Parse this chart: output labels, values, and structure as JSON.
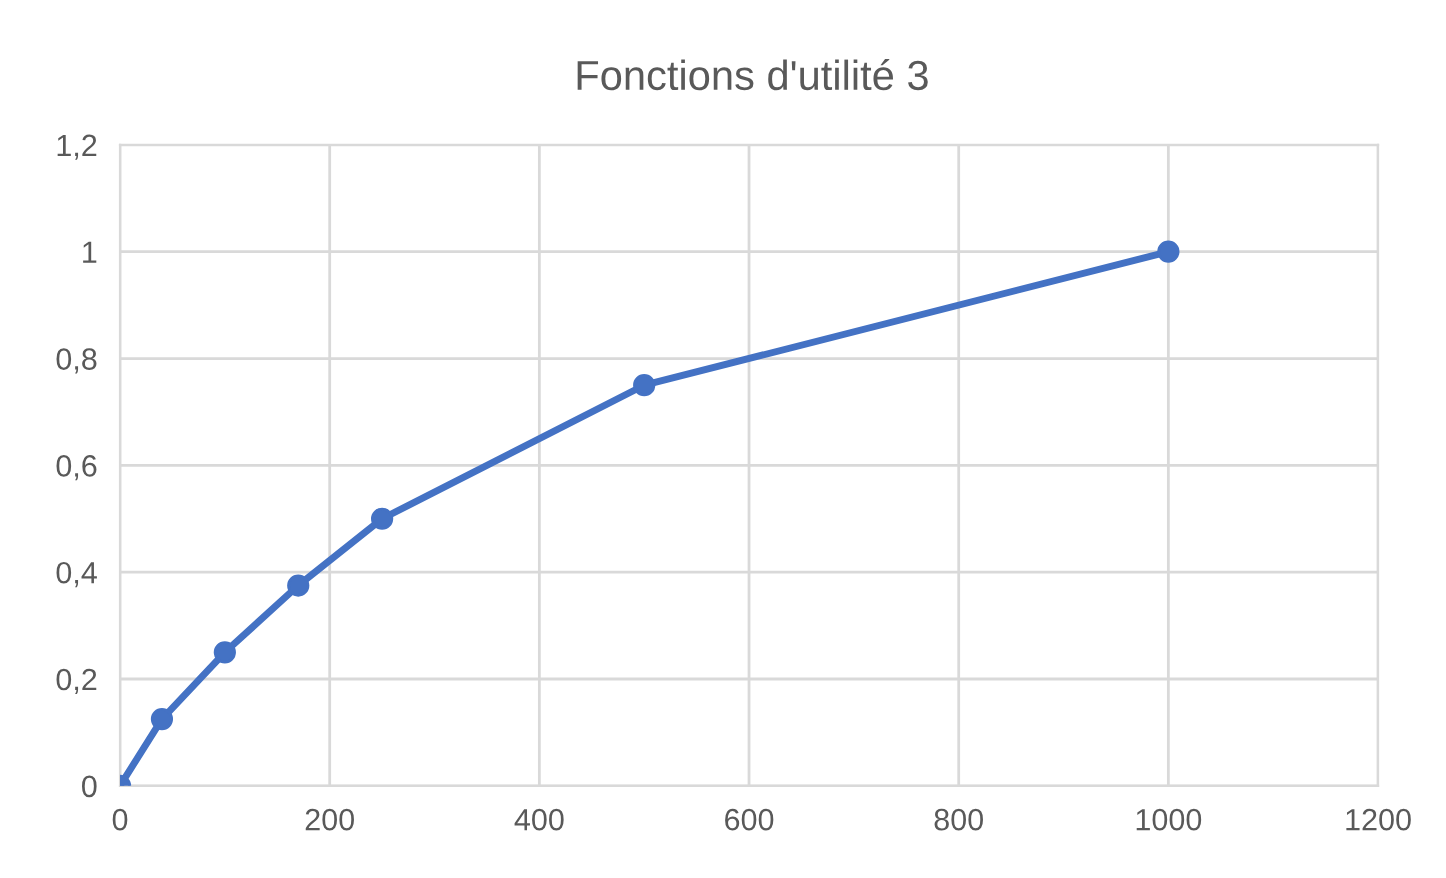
{
  "chart_data": {
    "type": "line",
    "title": "Fonctions d'utilité 3",
    "x": [
      0,
      40,
      100,
      170,
      250,
      500,
      1000
    ],
    "series": [
      {
        "color": "#4472c4",
        "values": [
          0,
          0.125,
          0.25,
          0.375,
          0.5,
          0.75,
          1
        ]
      }
    ],
    "xlim": [
      0,
      1200
    ],
    "xticks": [
      0,
      200,
      400,
      600,
      800,
      1000,
      1200
    ],
    "ylim": [
      0,
      1.2
    ],
    "yticks": [
      0,
      {
        "value": 0.2,
        "label": "0,2"
      },
      {
        "value": 0.4,
        "label": "0,4"
      },
      {
        "value": 0.6,
        "label": "0,6"
      },
      {
        "value": 0.8,
        "label": "0,8"
      },
      1,
      {
        "value": 1.2,
        "label": "1,2"
      }
    ],
    "grid": true,
    "marker": "circle",
    "line_style": "solid"
  }
}
